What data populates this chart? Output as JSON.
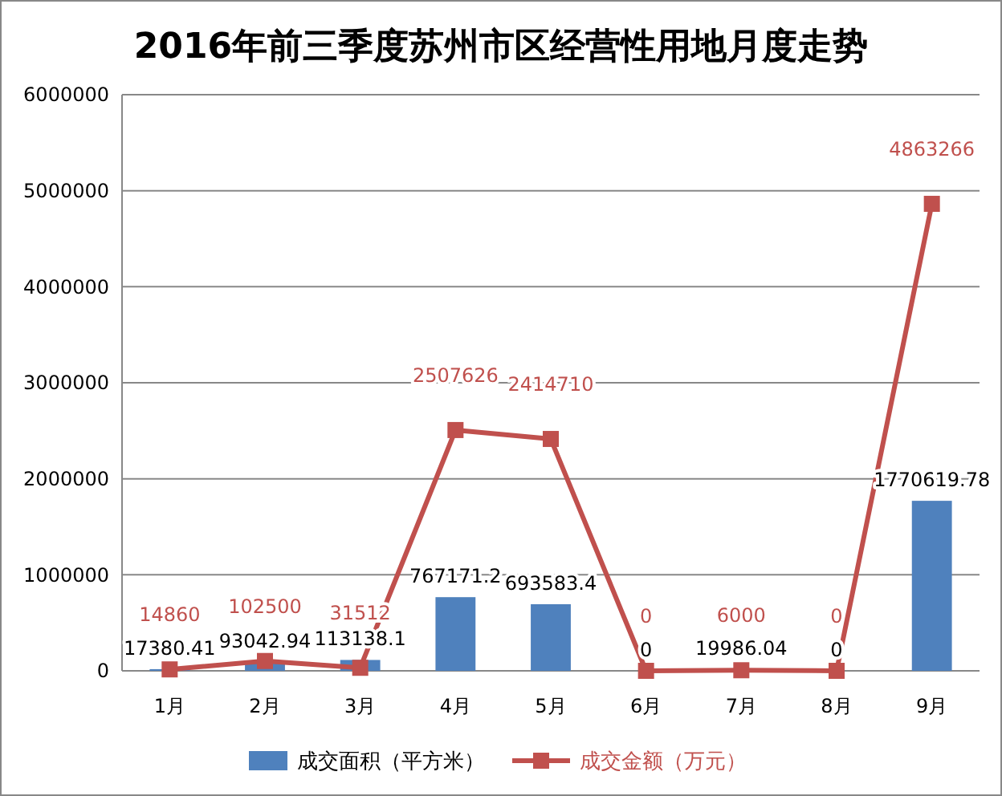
{
  "chart_data": {
    "type": "bar",
    "title": "2016年前三季度苏州市区经营性用地月度走势",
    "categories": [
      "1月",
      "2月",
      "3月",
      "4月",
      "5月",
      "6月",
      "7月",
      "8月",
      "9月"
    ],
    "series": [
      {
        "name": "成交面积（平方米）",
        "color": "#4f81bd",
        "values": [
          17380.41,
          93042.94,
          113138.1,
          767171.2,
          693583.4,
          0,
          19986.04,
          0,
          1770619.78
        ]
      },
      {
        "name": "成交金额（万元）",
        "type": "line",
        "color": "#c0504d",
        "values": [
          14860,
          102500,
          31512,
          2507626,
          2414710,
          0,
          6000,
          0,
          4863266
        ]
      }
    ],
    "ylim": [
      0,
      6000000
    ],
    "yticks": [
      0,
      1000000,
      2000000,
      3000000,
      4000000,
      5000000,
      6000000
    ],
    "grid": "y",
    "legend": "bottom",
    "data_labels": true,
    "marker": "square",
    "line_style": "solid"
  }
}
